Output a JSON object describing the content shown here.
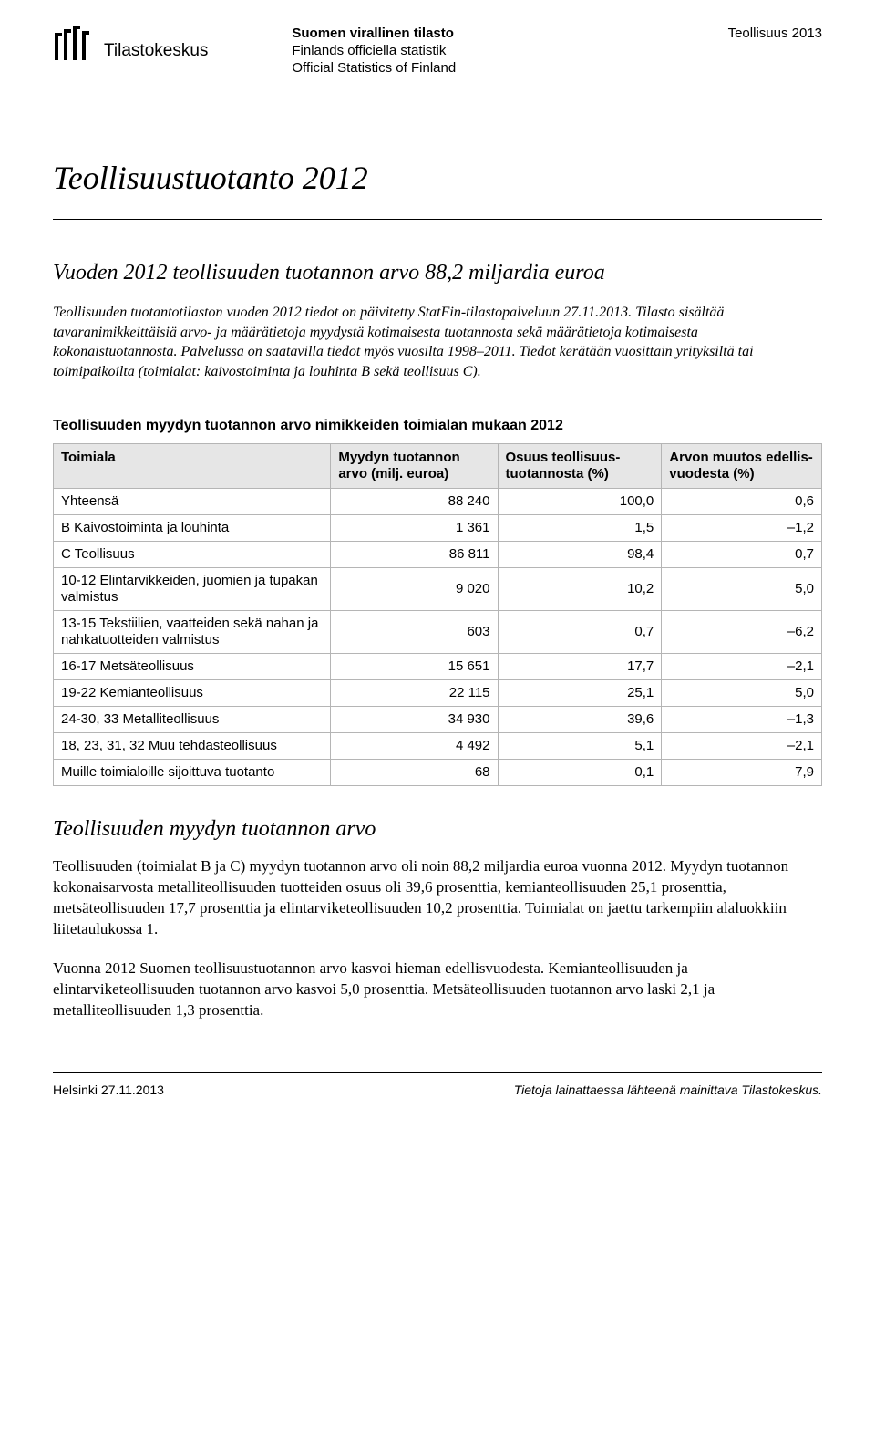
{
  "header": {
    "logo_top": "Tilastokeskus",
    "official": {
      "line1": "Suomen virallinen tilasto",
      "line2": "Finlands officiella statistik",
      "line3": "Official Statistics of Finland"
    },
    "category": "Teollisuus 2013"
  },
  "main_title": "Teollisuustuotanto 2012",
  "subtitle": "Vuoden 2012 teollisuuden tuotannon arvo 88,2 miljardia euroa",
  "intro": "Teollisuuden tuotantotilaston vuoden 2012 tiedot on päivitetty StatFin-tilastopalveluun 27.11.2013. Tilasto sisältää tavaranimikkeittäisiä arvo- ja määrätietoja myydystä kotimaisesta tuotannosta sekä määrätietoja kotimaisesta kokonaistuotannosta. Palvelussa on saatavilla tiedot myös vuosilta 1998–2011. Tiedot kerätään vuosittain yrityksiltä tai toimipaikoilta (toimialat: kaivostoiminta ja louhinta B sekä teollisuus C).",
  "table": {
    "title": "Teollisuuden myydyn tuotannon arvo nimikkeiden toimialan mukaan 2012",
    "columns": {
      "industry": "Toimiala",
      "value": "Myydyn tuotannon arvo (milj. euroa)",
      "share": "Osuus teollisuus-tuotannosta (%)",
      "change": "Arvon muutos edellis-vuodesta (%)"
    },
    "rows": [
      {
        "industry": "Yhteensä",
        "value": "88 240",
        "share": "100,0",
        "change": "0,6"
      },
      {
        "industry": "B Kaivostoiminta ja louhinta",
        "value": "1 361",
        "share": "1,5",
        "change": "–1,2"
      },
      {
        "industry": "C Teollisuus",
        "value": "86 811",
        "share": "98,4",
        "change": "0,7"
      },
      {
        "industry": "10-12 Elintarvikkeiden, juomien ja tupakan valmistus",
        "value": "9 020",
        "share": "10,2",
        "change": "5,0"
      },
      {
        "industry": "13-15 Tekstiilien, vaatteiden sekä nahan ja nahkatuotteiden valmistus",
        "value": "603",
        "share": "0,7",
        "change": "–6,2"
      },
      {
        "industry": "16-17 Metsäteollisuus",
        "value": "15 651",
        "share": "17,7",
        "change": "–2,1"
      },
      {
        "industry": "19-22 Kemianteollisuus",
        "value": "22 115",
        "share": "25,1",
        "change": "5,0"
      },
      {
        "industry": "24-30, 33 Metalliteollisuus",
        "value": "34 930",
        "share": "39,6",
        "change": "–1,3"
      },
      {
        "industry": "18, 23, 31, 32 Muu tehdasteollisuus",
        "value": "4 492",
        "share": "5,1",
        "change": "–2,1"
      },
      {
        "industry": "Muille toimialoille sijoittuva tuotanto",
        "value": "68",
        "share": "0,1",
        "change": "7,9"
      }
    ]
  },
  "section": {
    "title": "Teollisuuden myydyn tuotannon arvo",
    "p1": "Teollisuuden (toimialat B ja C) myydyn tuotannon arvo oli noin 88,2 miljardia euroa vuonna 2012. Myydyn tuotannon kokonaisarvosta metalliteollisuuden tuotteiden osuus oli 39,6 prosenttia, kemianteollisuuden 25,1 prosenttia, metsäteollisuuden 17,7 prosenttia ja elintarviketeollisuuden 10,2 prosenttia. Toimialat on jaettu tarkempiin alaluokkiin liitetaulukossa 1.",
    "p2": "Vuonna 2012 Suomen teollisuustuotannon arvo kasvoi hieman edellisvuodesta. Kemianteollisuuden ja elintarviketeollisuuden tuotannon arvo kasvoi 5,0 prosenttia. Metsäteollisuuden tuotannon arvo laski 2,1 ja metalliteollisuuden 1,3 prosenttia."
  },
  "footer": {
    "date": "Helsinki 27.11.2013",
    "citation": "Tietoja lainattaessa lähteenä mainittava Tilastokeskus."
  }
}
